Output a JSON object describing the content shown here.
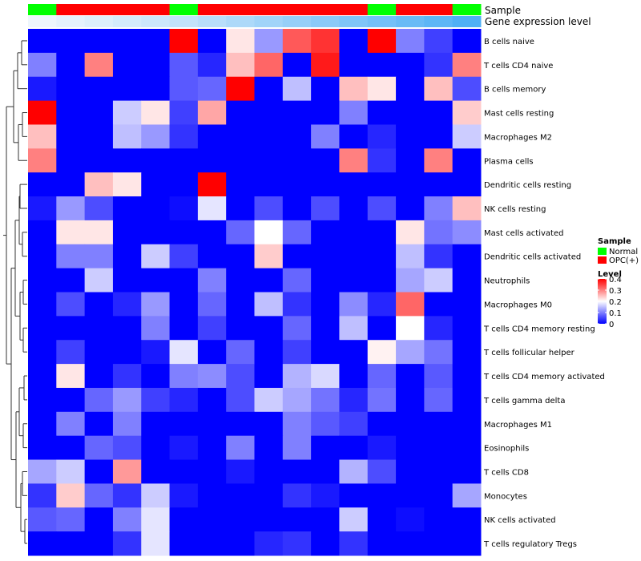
{
  "chart_data": {
    "type": "heatmap",
    "title": "",
    "annotation_labels": {
      "sample": "Sample",
      "expression": "Gene expression level"
    },
    "sample_groups": [
      "Normal",
      "OPC(+)",
      "OPC(+)",
      "OPC(+)",
      "OPC(+)",
      "Normal",
      "OPC(+)",
      "OPC(+)",
      "OPC(+)",
      "OPC(+)",
      "OPC(+)",
      "OPC(+)",
      "Normal",
      "OPC(+)",
      "OPC(+)",
      "Normal"
    ],
    "expression_bar": [
      0.02,
      0.05,
      0.08,
      0.11,
      0.14,
      0.17,
      0.21,
      0.25,
      0.29,
      0.33,
      0.37,
      0.41,
      0.45,
      0.49,
      0.53,
      0.58
    ],
    "rows": [
      "B cells naive",
      "T cells CD4 naive",
      "B cells memory",
      "Mast cells resting",
      "Macrophages M2",
      "Plasma cells",
      "Dendritic cells resting",
      "NK cells resting",
      "Mast cells activated",
      "Dendritic cells activated",
      "Neutrophils",
      "Macrophages M0",
      "T cells CD4 memory resting",
      "T cells follicular helper",
      "T cells CD4 memory activated",
      "T cells gamma delta",
      "Macrophages M1",
      "Eosinophils",
      "T cells CD8",
      "Monocytes",
      "NK cells activated",
      "T cells regulatory  Tregs"
    ],
    "values": [
      [
        0,
        0,
        0,
        0,
        0,
        0.4,
        0,
        0.22,
        0.12,
        0.33,
        0.36,
        0,
        0.4,
        0.1,
        0.05,
        0
      ],
      [
        0.1,
        0,
        0.3,
        0,
        0,
        0.07,
        0.03,
        0.25,
        0.32,
        0,
        0.38,
        0,
        0,
        0,
        0.04,
        0.3
      ],
      [
        0.02,
        0,
        0,
        0,
        0,
        0.07,
        0.08,
        0.4,
        0,
        0.15,
        0,
        0.25,
        0.22,
        0,
        0.25,
        0.06
      ],
      [
        0.4,
        0,
        0,
        0.16,
        0.22,
        0.05,
        0.27,
        0,
        0,
        0,
        0,
        0.1,
        0,
        0,
        0,
        0.24
      ],
      [
        0.25,
        0,
        0,
        0.15,
        0.12,
        0.04,
        0,
        0,
        0,
        0,
        0.1,
        0,
        0.03,
        0,
        0,
        0.16
      ],
      [
        0.3,
        0,
        0,
        0,
        0,
        0,
        0,
        0,
        0,
        0,
        0,
        0.3,
        0.04,
        0,
        0.3,
        0
      ],
      [
        0,
        0,
        0.25,
        0.22,
        0,
        0,
        0.4,
        0,
        0,
        0,
        0,
        0,
        0,
        0,
        0,
        0
      ],
      [
        0.02,
        0.12,
        0.06,
        0,
        0,
        0.01,
        0.18,
        0,
        0.06,
        0,
        0.06,
        0,
        0.06,
        0,
        0.1,
        0.25
      ],
      [
        0,
        0.22,
        0.22,
        0,
        0,
        0,
        0,
        0.08,
        0.2,
        0.08,
        0,
        0,
        0,
        0.22,
        0.09,
        0.11
      ],
      [
        0,
        0.1,
        0.1,
        0,
        0.16,
        0.05,
        0,
        0,
        0.24,
        0,
        0,
        0,
        0,
        0.15,
        0.04,
        0
      ],
      [
        0,
        0,
        0.16,
        0,
        0,
        0,
        0.1,
        0,
        0,
        0.08,
        0,
        0,
        0,
        0.13,
        0.16,
        0
      ],
      [
        0,
        0.06,
        0,
        0.03,
        0.12,
        0,
        0.08,
        0,
        0.15,
        0.04,
        0,
        0.11,
        0.03,
        0.32,
        0,
        0
      ],
      [
        0,
        0,
        0,
        0,
        0.1,
        0,
        0.05,
        0,
        0,
        0.08,
        0,
        0.15,
        0,
        0.2,
        0.03,
        0
      ],
      [
        0,
        0.05,
        0,
        0,
        0.02,
        0.18,
        0,
        0.08,
        0,
        0.05,
        0,
        0,
        0.21,
        0.13,
        0.09,
        0
      ],
      [
        0,
        0.22,
        0,
        0.04,
        0,
        0.1,
        0.11,
        0.06,
        0,
        0.14,
        0.17,
        0,
        0.08,
        0,
        0.07,
        0
      ],
      [
        0,
        0,
        0.08,
        0.12,
        0.05,
        0.03,
        0,
        0.06,
        0.16,
        0.13,
        0.09,
        0.03,
        0.09,
        0,
        0.08,
        0
      ],
      [
        0,
        0.1,
        0,
        0.1,
        0,
        0,
        0,
        0,
        0,
        0.1,
        0.07,
        0.05,
        0,
        0,
        0,
        0
      ],
      [
        0,
        0,
        0.08,
        0.06,
        0,
        0.02,
        0,
        0.1,
        0,
        0.1,
        0,
        0,
        0.02,
        0,
        0,
        0
      ],
      [
        0.13,
        0.16,
        0,
        0.28,
        0,
        0,
        0,
        0.02,
        0,
        0,
        0,
        0.14,
        0.06,
        0,
        0,
        0
      ],
      [
        0.04,
        0.24,
        0.08,
        0.04,
        0.16,
        0.02,
        0,
        0,
        0,
        0.04,
        0.02,
        0,
        0,
        0,
        0,
        0.13
      ],
      [
        0.07,
        0.08,
        0,
        0.1,
        0.18,
        0,
        0,
        0,
        0,
        0,
        0,
        0.16,
        0,
        0.01,
        0,
        0
      ],
      [
        0,
        0,
        0,
        0.04,
        0.18,
        0,
        0,
        0,
        0.03,
        0.04,
        0,
        0.04,
        0,
        0,
        0,
        0
      ]
    ],
    "legend": {
      "sample_title": "Sample",
      "sample_entries": [
        {
          "label": "Normal",
          "color": "#00ff00"
        },
        {
          "label": "OPC(+)",
          "color": "#ff0000"
        }
      ],
      "level_title": "Level",
      "level_ticks": [
        {
          "label": "0.4",
          "value": 0.4
        },
        {
          "label": "0.3",
          "value": 0.3
        },
        {
          "label": "0.2",
          "value": 0.2
        },
        {
          "label": "0.1",
          "value": 0.1
        },
        {
          "label": "0",
          "value": 0
        }
      ],
      "level_range": [
        0,
        0.4
      ]
    },
    "color_scale": {
      "low": "#0000ff",
      "mid": "#ffffff",
      "high": "#ff0000",
      "mid_value": 0.2
    },
    "expression_colors": {
      "light": "#eef6fc",
      "dark": "#4fb0f5"
    }
  }
}
